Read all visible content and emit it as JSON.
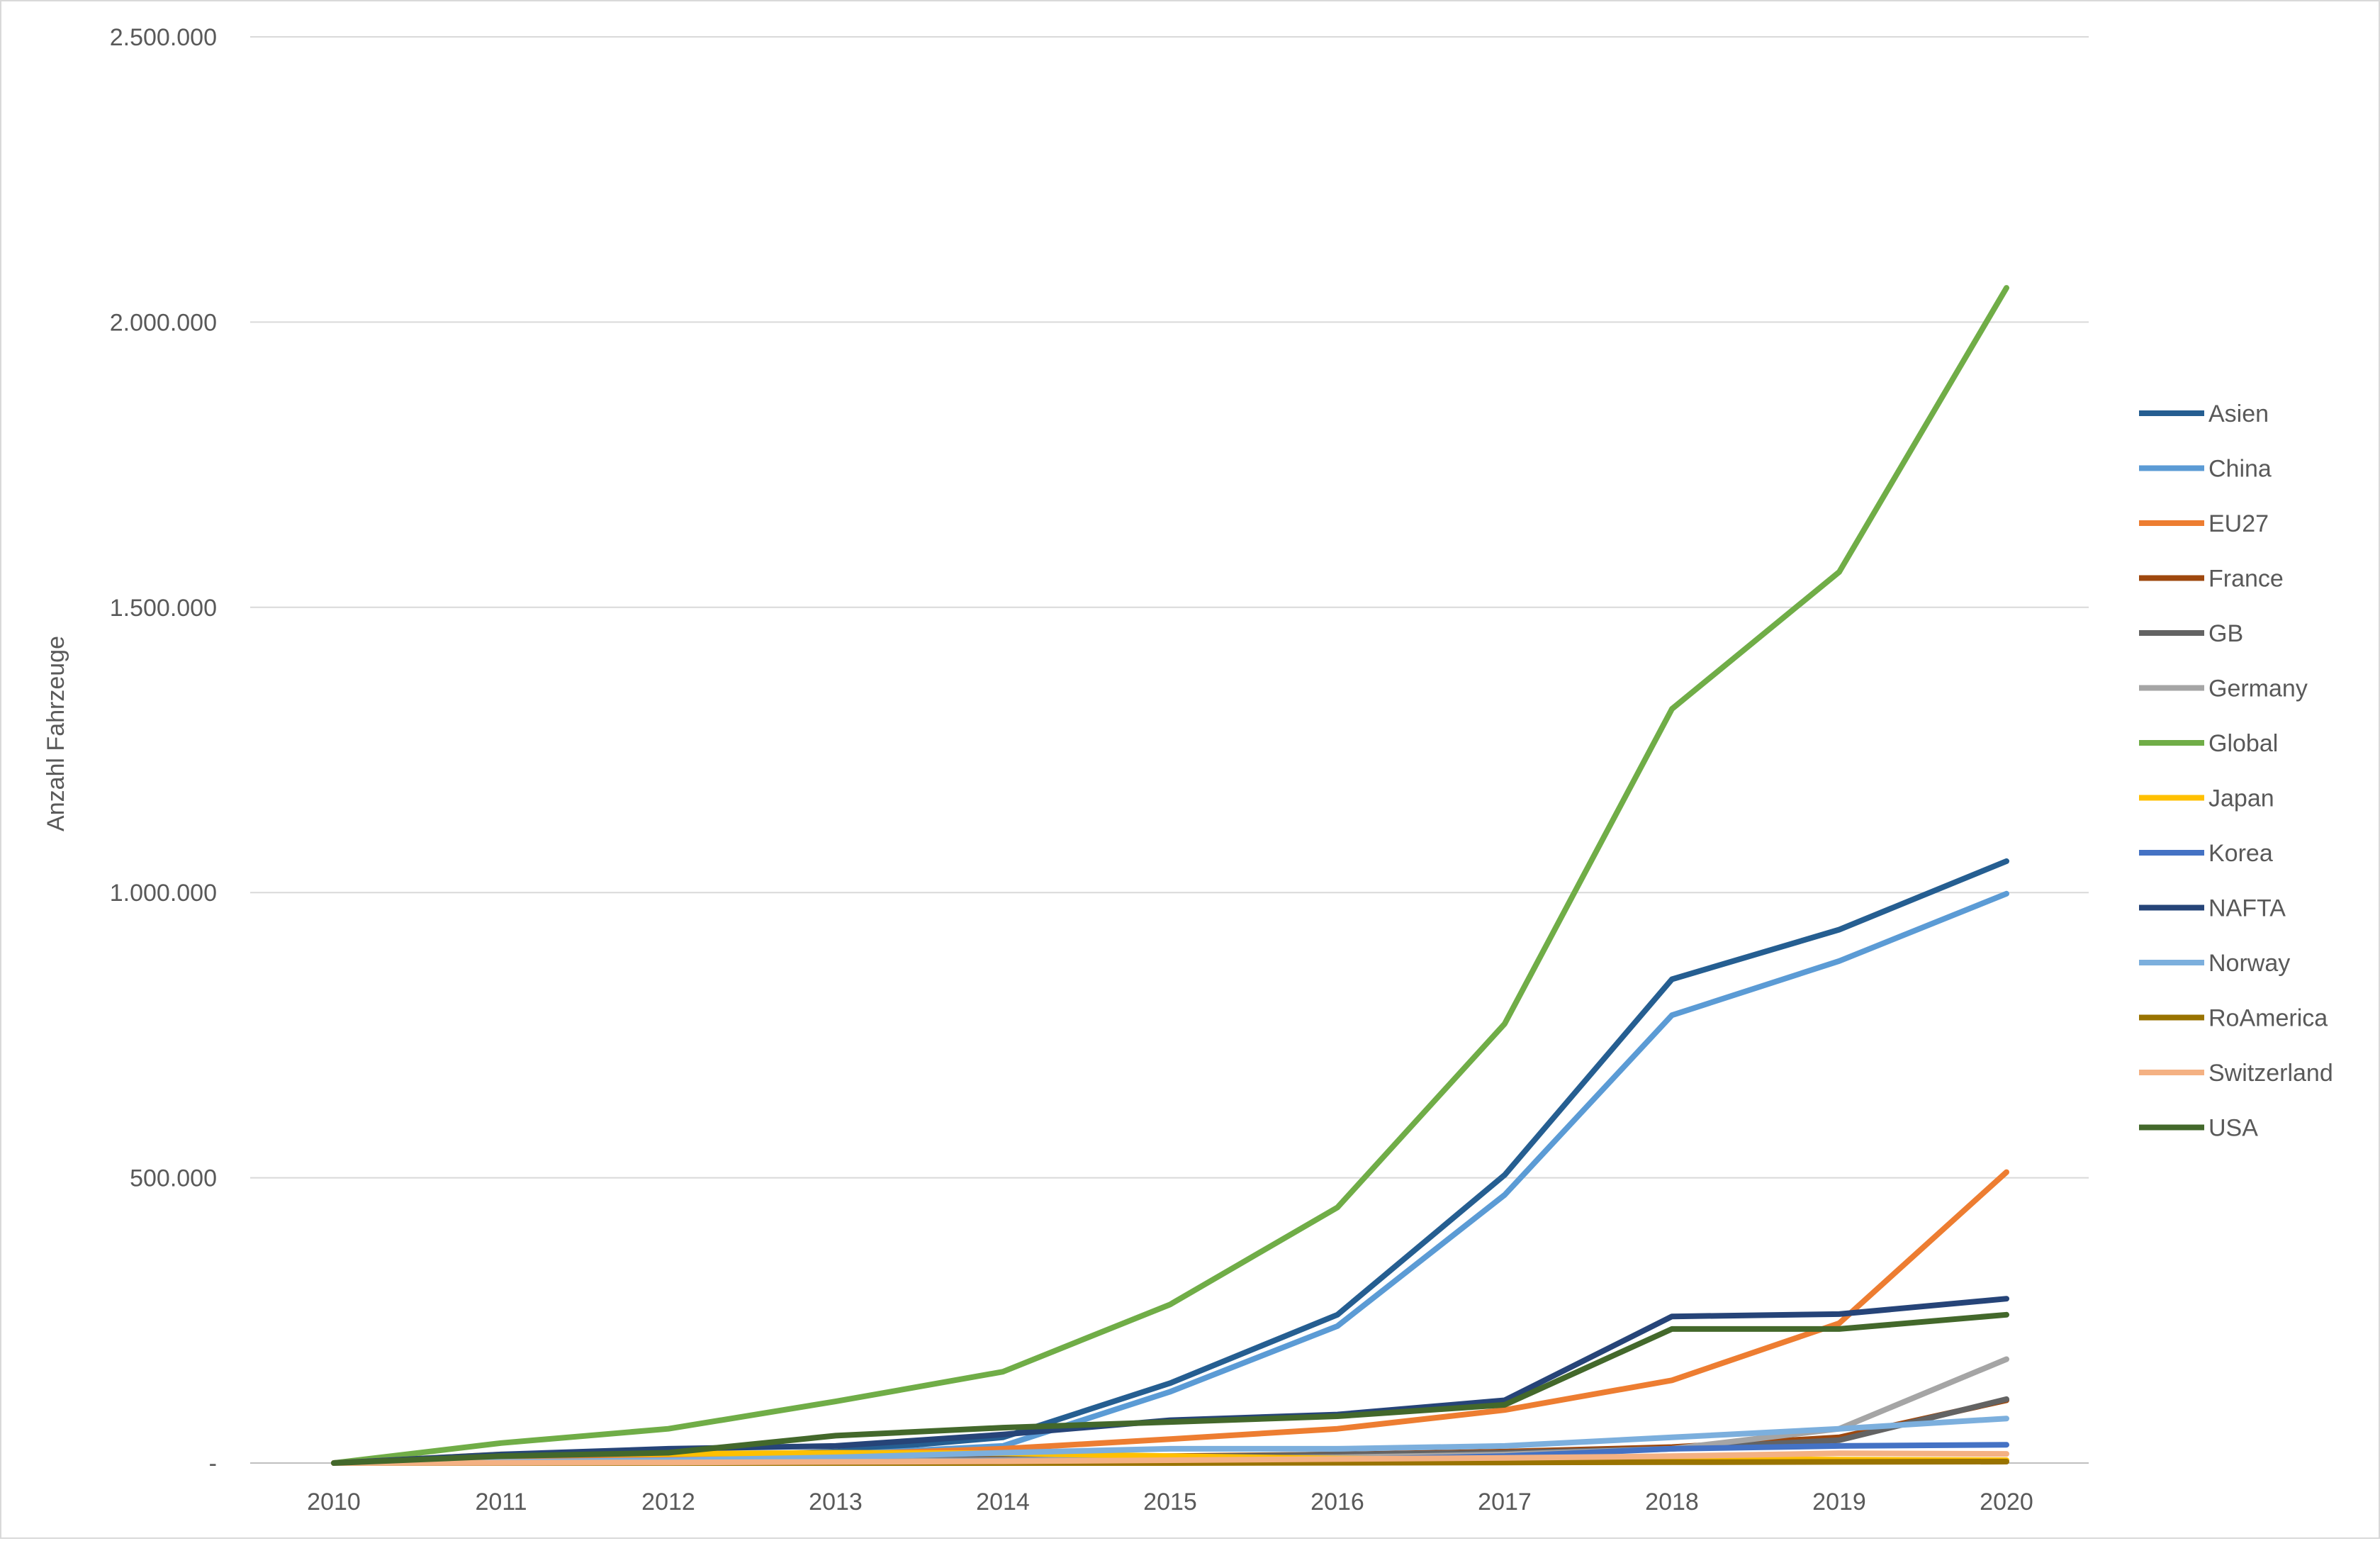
{
  "chart_data": {
    "type": "line",
    "title": "",
    "xlabel": "",
    "ylabel": "Anzahl Fahrzeuge",
    "x": [
      "2010",
      "2011",
      "2012",
      "2013",
      "2014",
      "2015",
      "2016",
      "2017",
      "2018",
      "2019",
      "2020"
    ],
    "ylim": [
      0,
      2500000
    ],
    "yticks": [
      0,
      500000,
      1000000,
      1500000,
      2000000,
      2500000
    ],
    "ytick_labels": [
      "-",
      "500.000",
      "1.000.000",
      "1.500.000",
      "2.000.000",
      "2.500.000"
    ],
    "grid": "horizontal",
    "legend_position": "right",
    "series": [
      {
        "name": "Asien",
        "color": "#255e91",
        "values": [
          0,
          5000,
          10000,
          20000,
          45000,
          140000,
          260000,
          505000,
          848000,
          935000,
          1055000
        ]
      },
      {
        "name": "China",
        "color": "#5b9bd5",
        "values": [
          0,
          3000,
          8000,
          15000,
          30000,
          125000,
          240000,
          470000,
          785000,
          880000,
          998000
        ]
      },
      {
        "name": "EU27",
        "color": "#ed7d31",
        "values": [
          0,
          5000,
          10000,
          15000,
          25000,
          42000,
          60000,
          93000,
          145000,
          245000,
          510000
        ]
      },
      {
        "name": "France",
        "color": "#9e480e",
        "values": [
          0,
          1000,
          3000,
          5000,
          8000,
          12000,
          15000,
          20000,
          28000,
          45000,
          110000
        ]
      },
      {
        "name": "GB",
        "color": "#636363",
        "values": [
          0,
          1000,
          2000,
          4000,
          7000,
          11000,
          15000,
          18000,
          25000,
          40000,
          112000
        ]
      },
      {
        "name": "Germany",
        "color": "#a5a5a5",
        "values": [
          0,
          1000,
          2000,
          3000,
          5000,
          8000,
          10000,
          15000,
          25000,
          60000,
          182000
        ]
      },
      {
        "name": "Global",
        "color": "#70ad47",
        "values": [
          0,
          35000,
          60000,
          108000,
          160000,
          278000,
          448000,
          770000,
          1322000,
          1562000,
          2060000
        ]
      },
      {
        "name": "Japan",
        "color": "#ffc000",
        "values": [
          0,
          15000,
          16000,
          18000,
          17000,
          12000,
          8000,
          6000,
          7000,
          6000,
          5000
        ]
      },
      {
        "name": "Korea",
        "color": "#4472c4",
        "values": [
          0,
          500,
          1000,
          2000,
          3000,
          4000,
          6000,
          12000,
          25000,
          30000,
          32000
        ]
      },
      {
        "name": "NAFTA",
        "color": "#264478",
        "values": [
          0,
          15000,
          25000,
          30000,
          50000,
          75000,
          85000,
          110000,
          257000,
          261000,
          288000
        ]
      },
      {
        "name": "Norway",
        "color": "#7cafdd",
        "values": [
          0,
          2000,
          5000,
          10000,
          18000,
          25000,
          25000,
          30000,
          45000,
          60000,
          78000
        ]
      },
      {
        "name": "RoAmerica",
        "color": "#997300",
        "values": [
          0,
          0,
          0,
          0,
          0,
          0,
          500,
          1000,
          1500,
          2000,
          2500
        ]
      },
      {
        "name": "Switzerland",
        "color": "#f4b183",
        "values": [
          0,
          500,
          1000,
          2000,
          3000,
          5000,
          7000,
          9000,
          12000,
          17000,
          16000
        ]
      },
      {
        "name": "USA",
        "color": "#43682b",
        "values": [
          0,
          12000,
          18000,
          48000,
          62000,
          72000,
          82000,
          102000,
          235000,
          235000,
          260000
        ]
      }
    ]
  }
}
